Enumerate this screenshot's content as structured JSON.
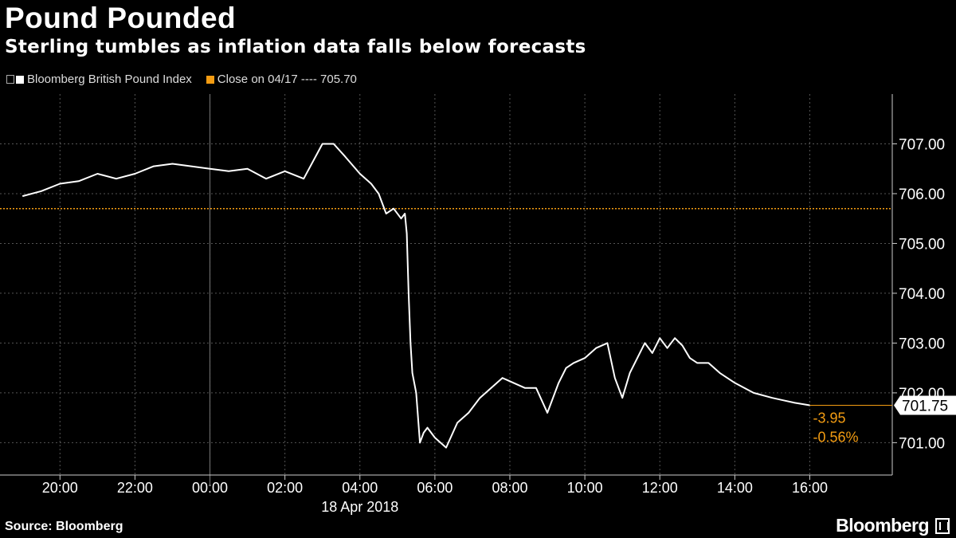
{
  "title": "Pound Pounded",
  "subtitle": "Sterling tumbles as inflation data falls below forecasts",
  "legend": {
    "series_label": "Bloomberg British Pound Index",
    "reference_label": "Close on 04/17 ---- 705.70"
  },
  "colors": {
    "series": "#ffffff",
    "reference": "#f39c12",
    "grid": "#555555",
    "background": "#000000"
  },
  "source": "Source: Bloomberg",
  "brand": "Bloomberg",
  "chart_data": {
    "type": "line",
    "title": "Pound Pounded",
    "x_unit": "hours from 20:00 on 17 Apr 2018",
    "x_range": [
      -1.6,
      22.2
    ],
    "ylim": [
      700.35,
      708.0
    ],
    "y_ticks": [
      701.0,
      702.0,
      703.0,
      704.0,
      705.0,
      706.0,
      707.0
    ],
    "y_tick_labels": [
      "701.00",
      "702.00",
      "703.00",
      "704.00",
      "705.00",
      "706.00",
      "707.00"
    ],
    "x_ticks": [
      0,
      2,
      4,
      6,
      8,
      10,
      12,
      14,
      16,
      18,
      20
    ],
    "x_tick_labels": [
      "20:00",
      "22:00",
      "00:00",
      "02:00",
      "04:00",
      "06:00",
      "08:00",
      "10:00",
      "12:00",
      "14:00",
      "16:00"
    ],
    "date_label": "18 Apr 2018",
    "date_label_at": 8.0,
    "day_divider_at": 4.0,
    "grid": true,
    "series": [
      {
        "name": "Bloomberg British Pound Index",
        "x": [
          -1.0,
          -0.5,
          0.0,
          0.5,
          1.0,
          1.5,
          2.0,
          2.5,
          3.0,
          3.5,
          4.0,
          4.5,
          5.0,
          5.5,
          6.0,
          6.5,
          7.0,
          7.3,
          7.6,
          8.0,
          8.3,
          8.5,
          8.7,
          8.9,
          9.1,
          9.2,
          9.25,
          9.3,
          9.35,
          9.4,
          9.5,
          9.6,
          9.7,
          9.8,
          10.0,
          10.3,
          10.6,
          10.9,
          11.2,
          11.5,
          11.8,
          12.1,
          12.4,
          12.7,
          13.0,
          13.3,
          13.5,
          13.7,
          14.0,
          14.3,
          14.6,
          14.8,
          15.0,
          15.2,
          15.4,
          15.6,
          15.8,
          16.0,
          16.2,
          16.4,
          16.6,
          16.8,
          17.0,
          17.3,
          17.6,
          18.0,
          18.5,
          19.0,
          19.3,
          19.6,
          20.0
        ],
        "y": [
          705.95,
          706.05,
          706.2,
          706.25,
          706.4,
          706.3,
          706.4,
          706.55,
          706.6,
          706.55,
          706.5,
          706.45,
          706.5,
          706.3,
          706.45,
          706.3,
          707.0,
          707.0,
          706.75,
          706.4,
          706.2,
          706.0,
          705.6,
          705.7,
          705.5,
          705.6,
          705.2,
          704.0,
          703.0,
          702.4,
          702.0,
          701.0,
          701.2,
          701.3,
          701.1,
          700.9,
          701.4,
          701.6,
          701.9,
          702.1,
          702.3,
          702.2,
          702.1,
          702.1,
          701.6,
          702.2,
          702.5,
          702.6,
          702.7,
          702.9,
          703.0,
          702.3,
          701.9,
          702.4,
          702.7,
          703.0,
          702.8,
          703.1,
          702.9,
          703.1,
          702.95,
          702.7,
          702.6,
          702.6,
          702.4,
          702.2,
          702.0,
          701.9,
          701.85,
          701.8,
          701.75
        ]
      }
    ],
    "reference_line": {
      "label": "Close on 04/17",
      "value": 705.7
    },
    "last_value_label": "701.75",
    "change_label": "-3.95",
    "change_pct_label": "-0.56%"
  }
}
